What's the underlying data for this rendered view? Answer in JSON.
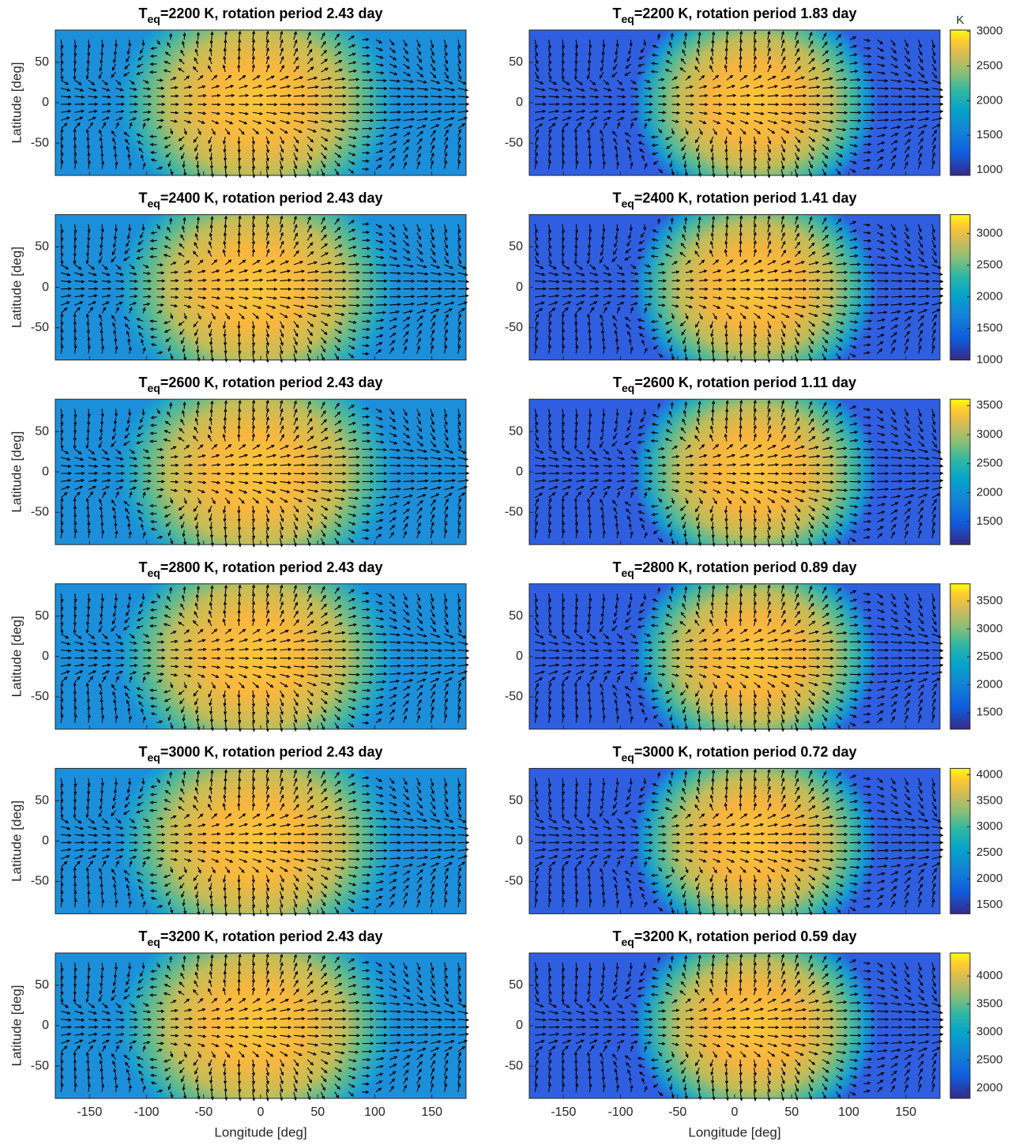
{
  "chart_data": [
    {
      "type": "heatmap",
      "title": [
        "T",
        "eq",
        "=2200 K, rotation period 2.43 day"
      ],
      "xlim": [
        -180,
        180
      ],
      "ylim": [
        -90,
        90
      ],
      "xticks": [
        -150,
        -100,
        -50,
        0,
        50,
        100,
        150
      ],
      "yticks": [
        -50,
        0,
        50
      ],
      "xticklabels": false,
      "ylabel": "Latitude [deg]"
    },
    {
      "type": "heatmap",
      "title": [
        "T",
        "eq",
        "=2200 K, rotation period 1.83 day"
      ],
      "xlim": [
        -180,
        180
      ],
      "ylim": [
        -90,
        90
      ],
      "xticks": [
        -150,
        -100,
        -50,
        0,
        50,
        100,
        150
      ],
      "yticks": [
        -50,
        0,
        50
      ],
      "xticklabels": false,
      "colorbar": {
        "label": "K",
        "clim": [
          920,
          3020
        ],
        "ticks": [
          1000,
          1500,
          2000,
          2500,
          3000
        ]
      }
    },
    {
      "type": "heatmap",
      "title": [
        "T",
        "eq",
        "=2400 K, rotation period 2.43 day"
      ],
      "xlim": [
        -180,
        180
      ],
      "ylim": [
        -90,
        90
      ],
      "xticks": [
        -150,
        -100,
        -50,
        0,
        50,
        100,
        150
      ],
      "yticks": [
        -50,
        0,
        50
      ],
      "xticklabels": false,
      "ylabel": "Latitude [deg]"
    },
    {
      "type": "heatmap",
      "title": [
        "T",
        "eq",
        "=2400 K, rotation period 1.41 day"
      ],
      "xlim": [
        -180,
        180
      ],
      "ylim": [
        -90,
        90
      ],
      "xticks": [
        -150,
        -100,
        -50,
        0,
        50,
        100,
        150
      ],
      "yticks": [
        -50,
        0,
        50
      ],
      "xticklabels": false,
      "colorbar": {
        "clim": [
          1000,
          3300
        ],
        "ticks": [
          1000,
          1500,
          2000,
          2500,
          3000
        ]
      }
    },
    {
      "type": "heatmap",
      "title": [
        "T",
        "eq",
        "=2600 K, rotation period 2.43 day"
      ],
      "xlim": [
        -180,
        180
      ],
      "ylim": [
        -90,
        90
      ],
      "xticks": [
        -150,
        -100,
        -50,
        0,
        50,
        100,
        150
      ],
      "yticks": [
        -50,
        0,
        50
      ],
      "xticklabels": false,
      "ylabel": "Latitude [deg]"
    },
    {
      "type": "heatmap",
      "title": [
        "T",
        "eq",
        "=2600 K, rotation period 1.11 day"
      ],
      "xlim": [
        -180,
        180
      ],
      "ylim": [
        -90,
        90
      ],
      "xticks": [
        -150,
        -100,
        -50,
        0,
        50,
        100,
        150
      ],
      "yticks": [
        -50,
        0,
        50
      ],
      "xticklabels": false,
      "colorbar": {
        "clim": [
          1105,
          3610
        ],
        "ticks": [
          1500,
          2000,
          2500,
          3000,
          3500
        ]
      }
    },
    {
      "type": "heatmap",
      "title": [
        "T",
        "eq",
        "=2800 K, rotation period 2.43 day"
      ],
      "xlim": [
        -180,
        180
      ],
      "ylim": [
        -90,
        90
      ],
      "xticks": [
        -150,
        -100,
        -50,
        0,
        50,
        100,
        150
      ],
      "yticks": [
        -50,
        0,
        50
      ],
      "xticklabels": false,
      "ylabel": "Latitude [deg]"
    },
    {
      "type": "heatmap",
      "title": [
        "T",
        "eq",
        "=2800 K, rotation period 0.89 day"
      ],
      "xlim": [
        -180,
        180
      ],
      "ylim": [
        -90,
        90
      ],
      "xticks": [
        -150,
        -100,
        -50,
        0,
        50,
        100,
        150
      ],
      "yticks": [
        -50,
        0,
        50
      ],
      "xticklabels": false,
      "colorbar": {
        "clim": [
          1200,
          3810
        ],
        "ticks": [
          1500,
          2000,
          2500,
          3000,
          3500
        ]
      }
    },
    {
      "type": "heatmap",
      "title": [
        "T",
        "eq",
        "=3000 K, rotation period 2.43 day"
      ],
      "xlim": [
        -180,
        180
      ],
      "ylim": [
        -90,
        90
      ],
      "xticks": [
        -150,
        -100,
        -50,
        0,
        50,
        100,
        150
      ],
      "yticks": [
        -50,
        0,
        50
      ],
      "xticklabels": false,
      "ylabel": "Latitude [deg]"
    },
    {
      "type": "heatmap",
      "title": [
        "T",
        "eq",
        "=3000 K, rotation period 0.72 day"
      ],
      "xlim": [
        -180,
        180
      ],
      "ylim": [
        -90,
        90
      ],
      "xticks": [
        -150,
        -100,
        -50,
        0,
        50,
        100,
        150
      ],
      "yticks": [
        -50,
        0,
        50
      ],
      "xticklabels": false,
      "colorbar": {
        "clim": [
          1330,
          4120
        ],
        "ticks": [
          1500,
          2000,
          2500,
          3000,
          3500,
          4000
        ]
      }
    },
    {
      "type": "heatmap",
      "title": [
        "T",
        "eq",
        "=3200 K, rotation period 2.43 day"
      ],
      "xlim": [
        -180,
        180
      ],
      "ylim": [
        -90,
        90
      ],
      "xticks": [
        -150,
        -100,
        -50,
        0,
        50,
        100,
        150
      ],
      "yticks": [
        -50,
        0,
        50
      ],
      "xticklabels": true,
      "xlabel": "Longitude [deg]",
      "ylabel": "Latitude [deg]"
    },
    {
      "type": "heatmap",
      "title": [
        "T",
        "eq",
        "=3200 K, rotation period 0.59 day"
      ],
      "xlim": [
        -180,
        180
      ],
      "ylim": [
        -90,
        90
      ],
      "xticks": [
        -150,
        -100,
        -50,
        0,
        50,
        100,
        150
      ],
      "yticks": [
        -50,
        0,
        50
      ],
      "xticklabels": true,
      "xlabel": "Longitude [deg]",
      "colorbar": {
        "clim": [
          1820,
          4410
        ],
        "ticks": [
          2000,
          2500,
          3000,
          3500,
          4000
        ]
      }
    }
  ]
}
